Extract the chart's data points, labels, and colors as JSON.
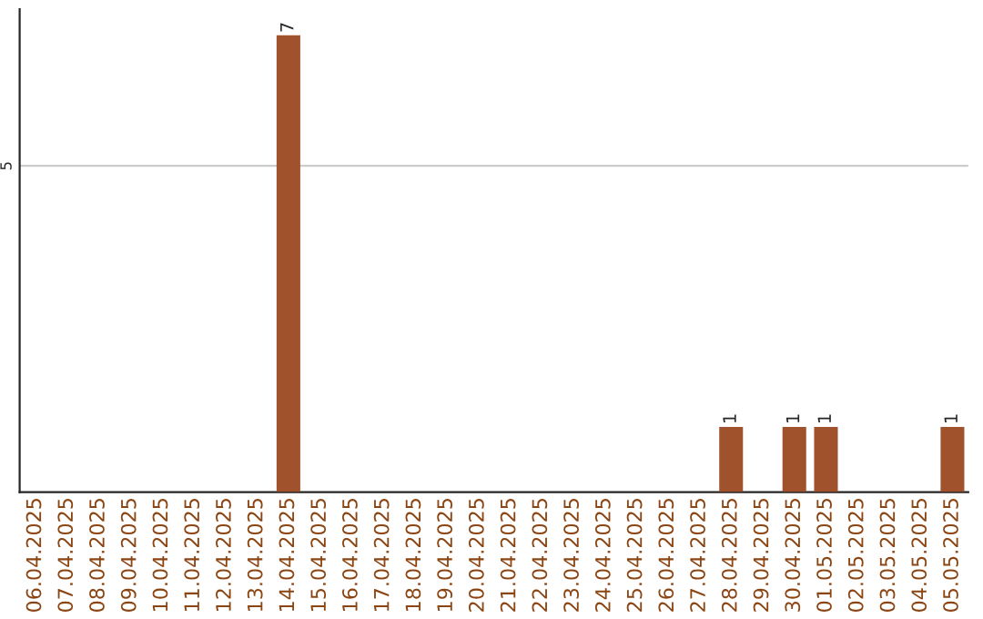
{
  "chart_data": {
    "type": "bar",
    "categories": [
      "06.04.2025",
      "07.04.2025",
      "08.04.2025",
      "09.04.2025",
      "10.04.2025",
      "11.04.2025",
      "12.04.2025",
      "13.04.2025",
      "14.04.2025",
      "15.04.2025",
      "16.04.2025",
      "17.04.2025",
      "18.04.2025",
      "19.04.2025",
      "20.04.2025",
      "21.04.2025",
      "22.04.2025",
      "23.04.2025",
      "24.04.2025",
      "25.04.2025",
      "26.04.2025",
      "27.04.2025",
      "28.04.2025",
      "29.04.2025",
      "30.04.2025",
      "01.05.2025",
      "02.05.2025",
      "03.05.2025",
      "04.05.2025",
      "05.05.2025"
    ],
    "values": [
      0,
      0,
      0,
      0,
      0,
      0,
      0,
      0,
      7,
      0,
      0,
      0,
      0,
      0,
      0,
      0,
      0,
      0,
      0,
      0,
      0,
      0,
      1,
      0,
      1,
      1,
      0,
      0,
      0,
      1
    ],
    "value_labels": [
      null,
      null,
      null,
      null,
      null,
      null,
      null,
      null,
      "7",
      null,
      null,
      null,
      null,
      null,
      null,
      null,
      null,
      null,
      null,
      null,
      null,
      null,
      "1",
      null,
      "1",
      "1",
      null,
      null,
      null,
      "1"
    ],
    "color": "#a0522d",
    "ylim": [
      0,
      7.4
    ],
    "yticks": [
      5
    ],
    "grid": "y",
    "legend": false
  }
}
